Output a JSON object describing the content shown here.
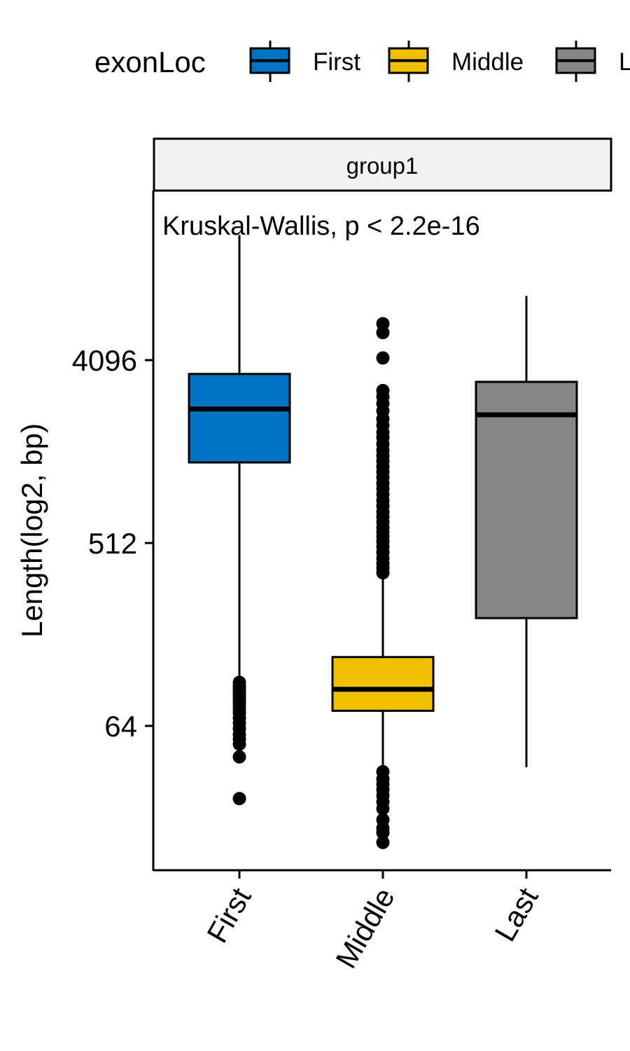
{
  "chart_data": {
    "type": "boxplot",
    "legend": {
      "title": "exonLoc",
      "position": "top",
      "entries": [
        {
          "label": "First",
          "color": "#0073C2"
        },
        {
          "label": "Middle",
          "color": "#EFC000"
        },
        {
          "label": "Last",
          "color": "#868686"
        }
      ]
    },
    "facet_label": "group1",
    "annotation": "Kruskal-Wallis, p < 2.2e-16",
    "ylabel": "Length(log2, bp)",
    "xlabel": "",
    "y_scale": "log2",
    "ylim": [
      12,
      28000
    ],
    "y_ticks": [
      {
        "value": 64,
        "label": "64"
      },
      {
        "value": 512,
        "label": "512"
      },
      {
        "value": 4096,
        "label": "4096"
      }
    ],
    "grid": false,
    "categories": [
      "First",
      "Middle",
      "Last"
    ],
    "boxes": [
      {
        "category": "First",
        "color": "#0073C2",
        "whisker_low": 105,
        "q1": 1280,
        "median": 2350,
        "q3": 3500,
        "whisker_high": 17000,
        "outliers": [
          105,
          101,
          98,
          95,
          92,
          89,
          86,
          83,
          80,
          77,
          74,
          70,
          66,
          62,
          58,
          55,
          52,
          45,
          28
        ]
      },
      {
        "category": "Middle",
        "color": "#EFC000",
        "whisker_low": 41,
        "q1": 76,
        "median": 97,
        "q3": 140,
        "whisker_high": 350,
        "outliers": [
          6200,
          5600,
          4200,
          2900,
          2700,
          2500,
          2300,
          2100,
          1950,
          1800,
          1700,
          1580,
          1470,
          1380,
          1300,
          1220,
          1150,
          1080,
          1010,
          950,
          890,
          830,
          780,
          730,
          690,
          650,
          610,
          580,
          550,
          520,
          490,
          460,
          430,
          405,
          385,
          365,
          38,
          35,
          33,
          31,
          29,
          27,
          25,
          22,
          20,
          19,
          17
        ]
      },
      {
        "category": "Last",
        "color": "#868686",
        "whisker_low": 40,
        "q1": 218,
        "median": 2200,
        "q3": 3200,
        "whisker_high": 8500,
        "outliers": []
      }
    ]
  }
}
